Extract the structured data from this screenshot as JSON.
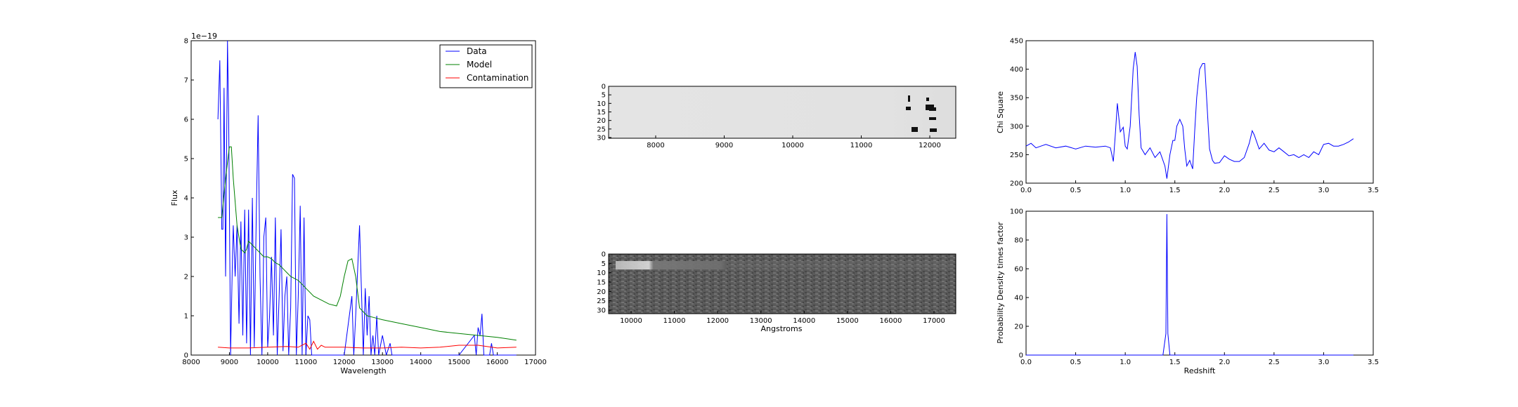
{
  "spectrum": {
    "ylabel": "Flux",
    "xlabel": "Wavelength",
    "scale_note": "1e−19",
    "x_ticks": [
      "8000",
      "9000",
      "10000",
      "11000",
      "12000",
      "13000",
      "14000",
      "15000",
      "16000",
      "17000"
    ],
    "y_ticks": [
      "0",
      "1",
      "2",
      "3",
      "4",
      "5",
      "6",
      "7",
      "8"
    ],
    "legend": [
      "Data",
      "Model",
      "Contamination"
    ],
    "colors": {
      "data": "#0000ff",
      "model": "#008000",
      "contamination": "#ff0000"
    }
  },
  "image1": {
    "x_ticks": [
      "8000",
      "9000",
      "10000",
      "11000",
      "12000"
    ],
    "y_ticks": [
      "0",
      "5",
      "10",
      "15",
      "20",
      "25",
      "30"
    ]
  },
  "image2": {
    "xlabel": "Angstroms",
    "x_ticks": [
      "10000",
      "11000",
      "12000",
      "13000",
      "14000",
      "15000",
      "16000",
      "17000"
    ],
    "y_ticks": [
      "0",
      "5",
      "10",
      "15",
      "20",
      "25",
      "30"
    ]
  },
  "chisq": {
    "ylabel": "Chi Square",
    "x_ticks": [
      "0.0",
      "0.5",
      "1.0",
      "1.5",
      "2.0",
      "2.5",
      "3.0",
      "3.5"
    ],
    "y_ticks": [
      "200",
      "250",
      "300",
      "350",
      "400",
      "450"
    ]
  },
  "pdf": {
    "ylabel": "Probability Density times factor",
    "xlabel": "Redshift",
    "x_ticks": [
      "0.0",
      "0.5",
      "1.0",
      "1.5",
      "2.0",
      "2.5",
      "3.0",
      "3.5"
    ],
    "y_ticks": [
      "0",
      "20",
      "40",
      "60",
      "80",
      "100"
    ]
  },
  "chart_data": [
    {
      "type": "line",
      "xlim": [
        8000,
        17000
      ],
      "ylim": [
        0,
        8
      ],
      "grid": false,
      "legend_position": "top-right",
      "series": [
        {
          "name": "Data",
          "x": [
            8700,
            8750,
            8800,
            8830,
            8860,
            8900,
            8950,
            8980,
            9000,
            9030,
            9080,
            9100,
            9150,
            9200,
            9250,
            9300,
            9350,
            9400,
            9450,
            9500,
            9550,
            9600,
            9650,
            9700,
            9750,
            9800,
            9850,
            9870,
            9900,
            9950,
            10000,
            10050,
            10100,
            10150,
            10200,
            10250,
            10300,
            10350,
            10400,
            10450,
            10500,
            10550,
            10600,
            10650,
            10700,
            10750,
            10800,
            10850,
            10900,
            10950,
            11000,
            11050,
            11100,
            11150,
            11200,
            11250,
            11300,
            11350,
            11400,
            11450,
            11500,
            11600,
            11800,
            12000,
            12200,
            12250,
            12300,
            12400,
            12500,
            12550,
            12600,
            12650,
            12700,
            12750,
            12800,
            12850,
            12900,
            13000,
            13100,
            13200,
            13250,
            13300,
            13350,
            13400,
            13450,
            13500,
            14000,
            15000,
            15400,
            15450,
            15500,
            15550,
            15600,
            15650,
            15700,
            15800,
            15850,
            15900,
            16000,
            16500
          ],
          "y": [
            6.0,
            7.5,
            3.2,
            3.2,
            6.8,
            2.0,
            8.0,
            6.0,
            3.8,
            0.0,
            2.5,
            3.3,
            2.0,
            3.3,
            0.8,
            3.4,
            0.5,
            3.7,
            0.3,
            3.7,
            0.0,
            4.0,
            0.2,
            3.5,
            6.1,
            2.0,
            0.0,
            1.0,
            3.0,
            3.5,
            0.2,
            1.0,
            2.5,
            0.5,
            3.5,
            0.0,
            1.5,
            3.2,
            0.1,
            1.5,
            2.0,
            0.0,
            1.2,
            4.6,
            4.5,
            0.0,
            1.5,
            3.8,
            0.0,
            3.5,
            0.0,
            1.0,
            0.9,
            0.0,
            0.0,
            0.0,
            0.0,
            0.0,
            0.0,
            0.0,
            0.0,
            0.0,
            0.0,
            0.0,
            1.5,
            0.0,
            1.0,
            3.3,
            0.0,
            1.7,
            0.5,
            1.5,
            0.0,
            0.5,
            0.0,
            1.0,
            0.0,
            0.5,
            0.0,
            0.3,
            0.0,
            0.0,
            0.0,
            0.0,
            0.0,
            0.0,
            0.0,
            0.0,
            0.5,
            0.0,
            0.7,
            0.5,
            1.05,
            0.0,
            0.0,
            0.0,
            0.3,
            0.0,
            0.0,
            0.0
          ]
        },
        {
          "name": "Model",
          "x": [
            8700,
            8800,
            8900,
            9000,
            9050,
            9100,
            9200,
            9300,
            9400,
            9450,
            9500,
            9600,
            9700,
            9800,
            9900,
            10000,
            10100,
            10200,
            10300,
            10400,
            10500,
            10600,
            10700,
            10800,
            10900,
            11000,
            11200,
            11400,
            11600,
            11800,
            11900,
            12000,
            12100,
            12200,
            12300,
            12400,
            12600,
            12800,
            13000,
            13500,
            14000,
            14500,
            15000,
            15500,
            16000,
            16500
          ],
          "y": [
            3.5,
            3.5,
            4.5,
            5.3,
            5.3,
            4.5,
            3.3,
            2.7,
            2.6,
            2.7,
            2.9,
            2.8,
            2.7,
            2.6,
            2.5,
            2.5,
            2.45,
            2.35,
            2.3,
            2.2,
            2.1,
            2.0,
            1.95,
            1.9,
            1.8,
            1.7,
            1.5,
            1.4,
            1.3,
            1.25,
            1.5,
            2.0,
            2.4,
            2.45,
            2.0,
            1.2,
            1.0,
            0.95,
            0.9,
            0.8,
            0.7,
            0.6,
            0.55,
            0.5,
            0.45,
            0.38
          ]
        },
        {
          "name": "Contamination",
          "x": [
            8700,
            9000,
            9500,
            10000,
            10500,
            10800,
            11000,
            11100,
            11200,
            11300,
            11400,
            11500,
            12000,
            12500,
            13000,
            13500,
            14000,
            14500,
            15000,
            15500,
            16000,
            16500
          ],
          "y": [
            0.2,
            0.18,
            0.18,
            0.2,
            0.22,
            0.2,
            0.3,
            0.15,
            0.35,
            0.15,
            0.25,
            0.2,
            0.2,
            0.18,
            0.18,
            0.2,
            0.18,
            0.2,
            0.25,
            0.25,
            0.18,
            0.2
          ]
        }
      ]
    },
    {
      "type": "line",
      "xlim": [
        0,
        3.5
      ],
      "ylim": [
        200,
        450
      ],
      "grid": false,
      "series": [
        {
          "x": [
            0.0,
            0.05,
            0.1,
            0.15,
            0.2,
            0.3,
            0.4,
            0.5,
            0.6,
            0.7,
            0.8,
            0.85,
            0.88,
            0.9,
            0.92,
            0.95,
            0.98,
            1.0,
            1.02,
            1.05,
            1.08,
            1.1,
            1.12,
            1.14,
            1.16,
            1.2,
            1.25,
            1.3,
            1.35,
            1.4,
            1.42,
            1.45,
            1.48,
            1.5,
            1.52,
            1.55,
            1.58,
            1.6,
            1.62,
            1.65,
            1.68,
            1.7,
            1.72,
            1.75,
            1.78,
            1.8,
            1.82,
            1.85,
            1.88,
            1.9,
            1.95,
            2.0,
            2.05,
            2.1,
            2.15,
            2.2,
            2.25,
            2.28,
            2.3,
            2.35,
            2.4,
            2.45,
            2.5,
            2.55,
            2.6,
            2.65,
            2.7,
            2.75,
            2.8,
            2.85,
            2.9,
            2.95,
            3.0,
            3.05,
            3.1,
            3.15,
            3.2,
            3.25,
            3.3
          ],
          "y": [
            265,
            270,
            262,
            265,
            268,
            262,
            265,
            260,
            265,
            263,
            265,
            262,
            238,
            285,
            340,
            290,
            298,
            265,
            260,
            300,
            400,
            430,
            405,
            320,
            262,
            250,
            262,
            245,
            255,
            230,
            208,
            250,
            275,
            275,
            300,
            312,
            300,
            260,
            230,
            240,
            225,
            290,
            350,
            400,
            410,
            410,
            350,
            260,
            240,
            235,
            236,
            248,
            242,
            238,
            238,
            245,
            270,
            292,
            285,
            260,
            270,
            258,
            255,
            262,
            255,
            248,
            250,
            245,
            250,
            245,
            255,
            250,
            268,
            270,
            265,
            265,
            268,
            272,
            278
          ]
        }
      ]
    },
    {
      "type": "line",
      "xlim": [
        0,
        3.5
      ],
      "ylim": [
        0,
        100
      ],
      "grid": false,
      "series": [
        {
          "x": [
            0.0,
            1.38,
            1.41,
            1.42,
            1.43,
            1.45,
            3.3
          ],
          "y": [
            0,
            0,
            15,
            98,
            15,
            0,
            0
          ]
        }
      ]
    }
  ]
}
